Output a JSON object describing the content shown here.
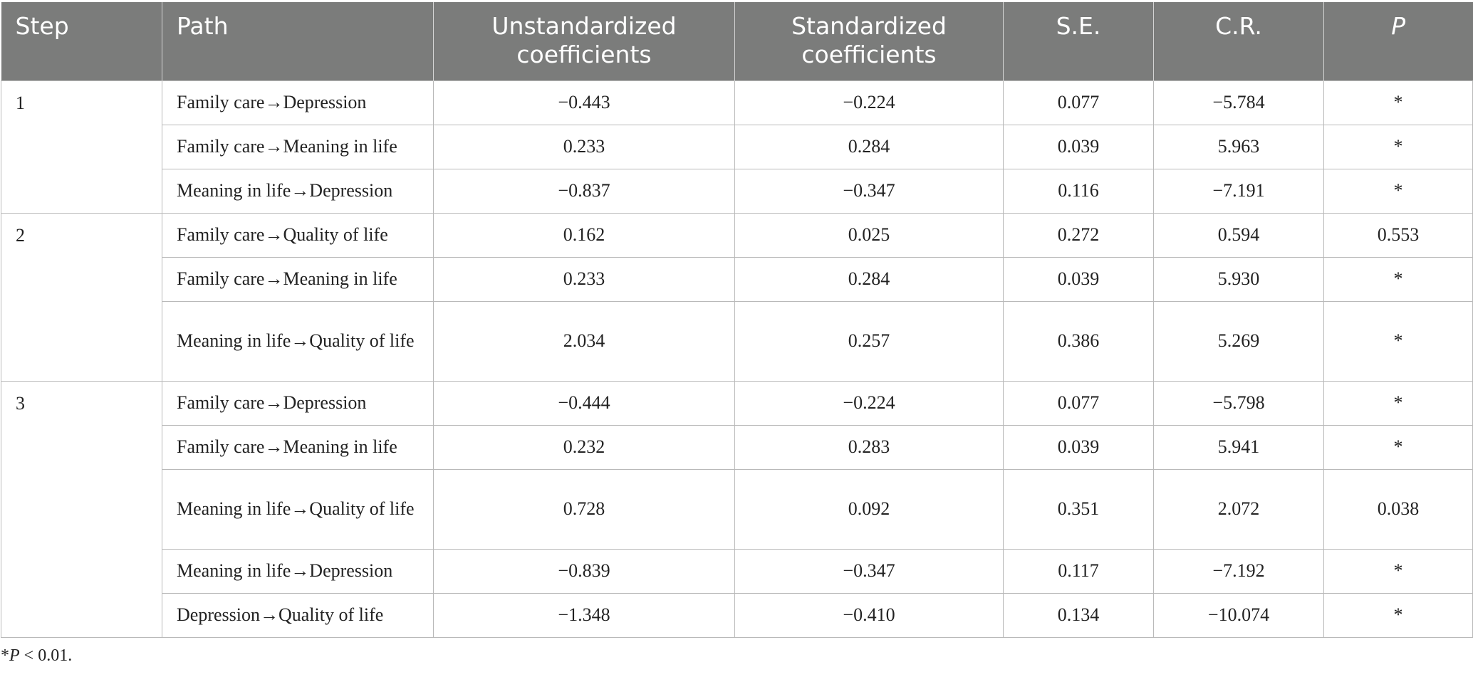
{
  "header": {
    "step": "Step",
    "path": "Path",
    "unstd": "Unstandardized coefficients",
    "std": "Standardized coefficients",
    "se": "S.E.",
    "cr": "C.R.",
    "p": "P"
  },
  "groups": [
    {
      "step": "1",
      "rows": [
        {
          "path": "Family care→Depression",
          "unstd": "−0.443",
          "std": "−0.224",
          "se": "0.077",
          "cr": "−5.784",
          "p": "*"
        },
        {
          "path": "Family care→Meaning in life",
          "unstd": "0.233",
          "std": "0.284",
          "se": "0.039",
          "cr": "5.963",
          "p": "*"
        },
        {
          "path": "Meaning in life→Depression",
          "unstd": "−0.837",
          "std": "−0.347",
          "se": "0.116",
          "cr": "−7.191",
          "p": "*"
        }
      ]
    },
    {
      "step": "2",
      "rows": [
        {
          "path": "Family care→Quality of life",
          "unstd": "0.162",
          "std": "0.025",
          "se": "0.272",
          "cr": "0.594",
          "p": "0.553"
        },
        {
          "path": "Family care→Meaning in life",
          "unstd": "0.233",
          "std": "0.284",
          "se": "0.039",
          "cr": "5.930",
          "p": "*"
        },
        {
          "path": "Meaning in life→Quality of life",
          "unstd": "2.034",
          "std": "0.257",
          "se": "0.386",
          "cr": "5.269",
          "p": "*"
        }
      ]
    },
    {
      "step": "3",
      "rows": [
        {
          "path": "Family care→Depression",
          "unstd": "−0.444",
          "std": "−0.224",
          "se": "0.077",
          "cr": "−5.798",
          "p": "*"
        },
        {
          "path": "Family care→Meaning in life",
          "unstd": "0.232",
          "std": "0.283",
          "se": "0.039",
          "cr": "5.941",
          "p": "*"
        },
        {
          "path": "Meaning in life→Quality of life",
          "unstd": "0.728",
          "std": "0.092",
          "se": "0.351",
          "cr": "2.072",
          "p": "0.038"
        },
        {
          "path": "Meaning in life→Depression",
          "unstd": "−0.839",
          "std": "−0.347",
          "se": "0.117",
          "cr": "−7.192",
          "p": "*"
        },
        {
          "path": "Depression→Quality of life",
          "unstd": "−1.348",
          "std": "−0.410",
          "se": "0.134",
          "cr": "−10.074",
          "p": "*"
        }
      ]
    }
  ],
  "footnote": {
    "mark": "*",
    "italic": "P",
    "rest": " < 0.01."
  }
}
